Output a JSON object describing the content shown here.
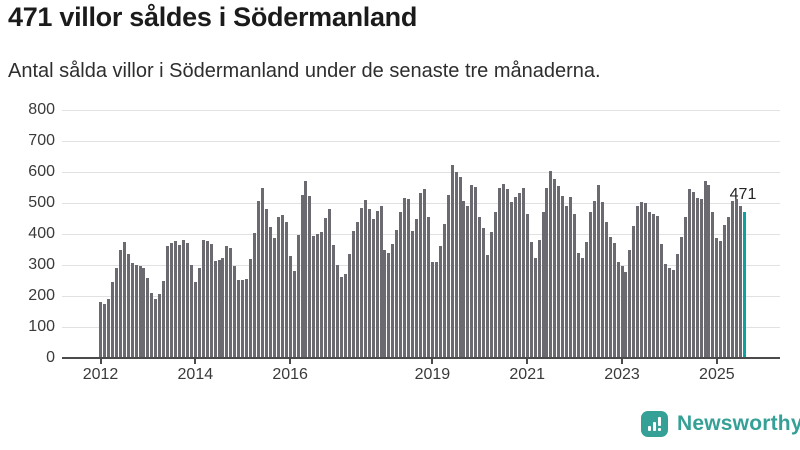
{
  "header": {
    "title": "471 villor såldes i Södermanland",
    "subtitle": "Antal sålda villor i Södermanland under de senaste tre månaderna."
  },
  "chart_data": {
    "type": "bar",
    "title": "471 villor såldes i Södermanland",
    "subtitle": "Antal sålda villor i Södermanland under de senaste tre månaderna.",
    "x_unit": "month",
    "x_start": "2012-01",
    "x_end": "2025-08",
    "values": [
      180,
      173,
      190,
      244,
      291,
      348,
      375,
      334,
      305,
      300,
      298,
      291,
      257,
      211,
      190,
      205,
      250,
      362,
      370,
      377,
      365,
      380,
      372,
      300,
      245,
      290,
      380,
      377,
      368,
      312,
      315,
      324,
      361,
      354,
      296,
      253,
      253,
      256,
      319,
      404,
      508,
      550,
      481,
      422,
      387,
      454,
      462,
      440,
      330,
      280,
      398,
      525,
      571,
      523,
      395,
      400,
      408,
      452,
      480,
      365,
      300,
      262,
      270,
      335,
      410,
      440,
      485,
      510,
      480,
      450,
      475,
      490,
      348,
      340,
      367,
      412,
      470,
      516,
      513,
      410,
      449,
      532,
      545,
      454,
      311,
      311,
      362,
      433,
      526,
      624,
      600,
      585,
      507,
      491,
      557,
      553,
      455,
      420,
      332,
      405,
      470,
      548,
      561,
      545,
      503,
      519,
      532,
      549,
      465,
      373,
      322,
      380,
      470,
      548,
      604,
      577,
      556,
      523,
      490,
      520,
      464,
      339,
      323,
      374,
      470,
      507,
      557,
      502,
      440,
      390,
      372,
      310,
      297,
      278,
      347,
      425,
      489,
      503,
      501,
      472,
      465,
      457,
      369,
      303,
      289,
      284,
      334,
      390,
      454,
      545,
      536,
      516,
      513,
      571,
      558,
      470,
      387,
      377,
      428,
      454,
      507,
      512,
      490,
      471
    ],
    "highlight_last": true,
    "last_value": 471,
    "annotation": "471",
    "bar_color": "#6a6a70",
    "highlight_color": "#0ba3a2",
    "y_ticks": [
      0,
      100,
      200,
      300,
      400,
      500,
      600,
      700,
      800
    ],
    "ylim": [
      0,
      800
    ],
    "x_ticks": [
      {
        "label": "2012",
        "index": 0
      },
      {
        "label": "2014",
        "index": 24
      },
      {
        "label": "2016",
        "index": 48
      },
      {
        "label": "2019",
        "index": 84
      },
      {
        "label": "2021",
        "index": 108
      },
      {
        "label": "2023",
        "index": 132
      },
      {
        "label": "2025",
        "index": 156
      }
    ],
    "grid": true,
    "legend": null
  },
  "footer": {
    "brand": "Newsworthy",
    "brand_color": "#35a096"
  }
}
